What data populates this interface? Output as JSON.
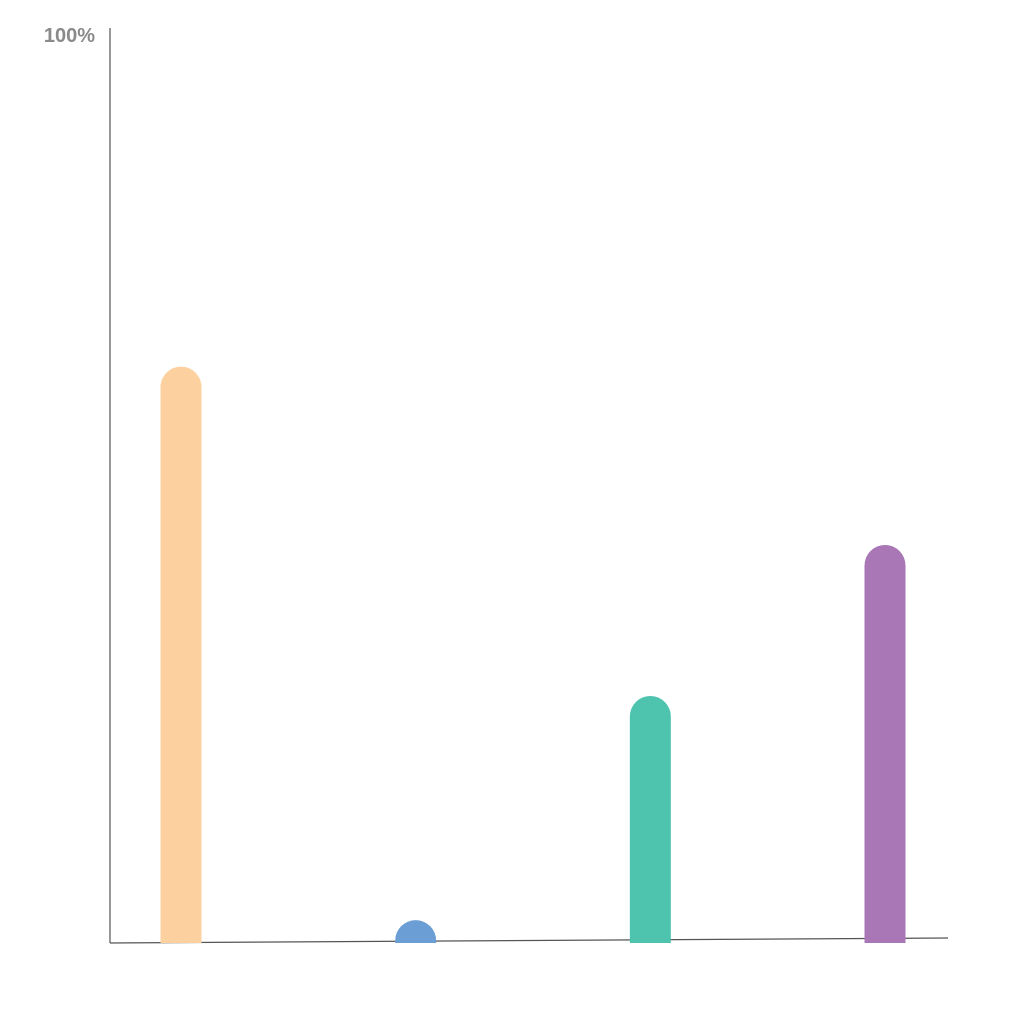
{
  "chart_data": {
    "type": "bar",
    "title": "",
    "xlabel": "",
    "ylabel": "",
    "categories": [
      "",
      "",
      "",
      ""
    ],
    "values": [
      63,
      2.5,
      27,
      43.5
    ],
    "colors": [
      "#fcd19f",
      "#6a9ed4",
      "#4ec3ae",
      "#a976b6"
    ],
    "ylim": [
      0,
      100
    ],
    "yticks": [
      {
        "value": 100,
        "label": "100%"
      }
    ],
    "grid": false,
    "legend": "none"
  }
}
